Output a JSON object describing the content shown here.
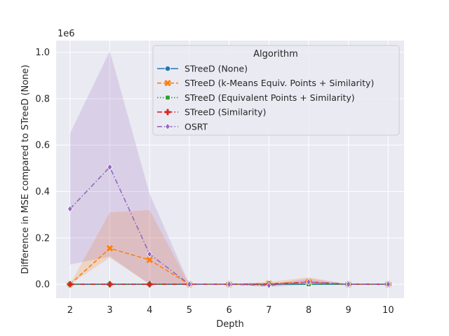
{
  "chart_data": {
    "type": "line",
    "title": "",
    "xlabel": "Depth",
    "ylabel": "Difference in MSE compared to STreeD (None)",
    "y_multiplier_label": "1e6",
    "x": [
      2,
      3,
      4,
      5,
      6,
      7,
      8,
      9,
      10
    ],
    "xlim": [
      1.65,
      10.4
    ],
    "ylim": [
      -0.06,
      1.05
    ],
    "x_ticks": [
      2,
      3,
      4,
      5,
      6,
      7,
      8,
      9,
      10
    ],
    "y_ticks": [
      0.0,
      0.2,
      0.4,
      0.6,
      0.8,
      1.0
    ],
    "y_tick_labels": [
      "0.0",
      "0.2",
      "0.4",
      "0.6",
      "0.8",
      "1.0"
    ],
    "grid": true,
    "legend": {
      "title": "Algorithm",
      "placement": "top-right"
    },
    "series": [
      {
        "name": "STreeD (None)",
        "color": "#1f77b4",
        "dash": "solid",
        "marker": "circle",
        "values": [
          0,
          0,
          0,
          0,
          0,
          0,
          0,
          0,
          0
        ]
      },
      {
        "name": "STreeD (k-Means Equiv. Points + Similarity)",
        "color": "#ff7f0e",
        "dash": "dashed",
        "marker": "x",
        "values": [
          0,
          0.155,
          0.105,
          0,
          0,
          0.003,
          0.008,
          0,
          0
        ],
        "ci_lower": [
          0,
          0.115,
          0,
          0,
          0,
          -0.005,
          0,
          0,
          0
        ],
        "ci_upper": [
          0,
          0.31,
          0.32,
          0,
          0,
          0.01,
          0.03,
          0,
          0
        ]
      },
      {
        "name": "STreeD (Equivalent Points + Similarity)",
        "color": "#2ca02c",
        "dash": "dotted",
        "marker": "square",
        "values": [
          0,
          0,
          0,
          0,
          0,
          0,
          0,
          0,
          0
        ]
      },
      {
        "name": "STreeD (Similarity)",
        "color": "#d62728",
        "dash": "dashdot",
        "marker": "plus",
        "values": [
          0,
          0,
          0,
          0,
          0,
          0,
          0.01,
          0,
          0
        ]
      },
      {
        "name": "OSRT",
        "color": "#9467bd",
        "dash": "dashdot",
        "marker": "diamond",
        "values": [
          0.325,
          0.505,
          0.13,
          0,
          0,
          -0.005,
          0.01,
          0,
          0
        ],
        "ci_lower": [
          0.085,
          0.12,
          0,
          0,
          0,
          -0.012,
          0,
          0,
          0
        ],
        "ci_upper": [
          0.65,
          1.005,
          0.39,
          0,
          0,
          0,
          0.025,
          0,
          0
        ]
      }
    ]
  }
}
